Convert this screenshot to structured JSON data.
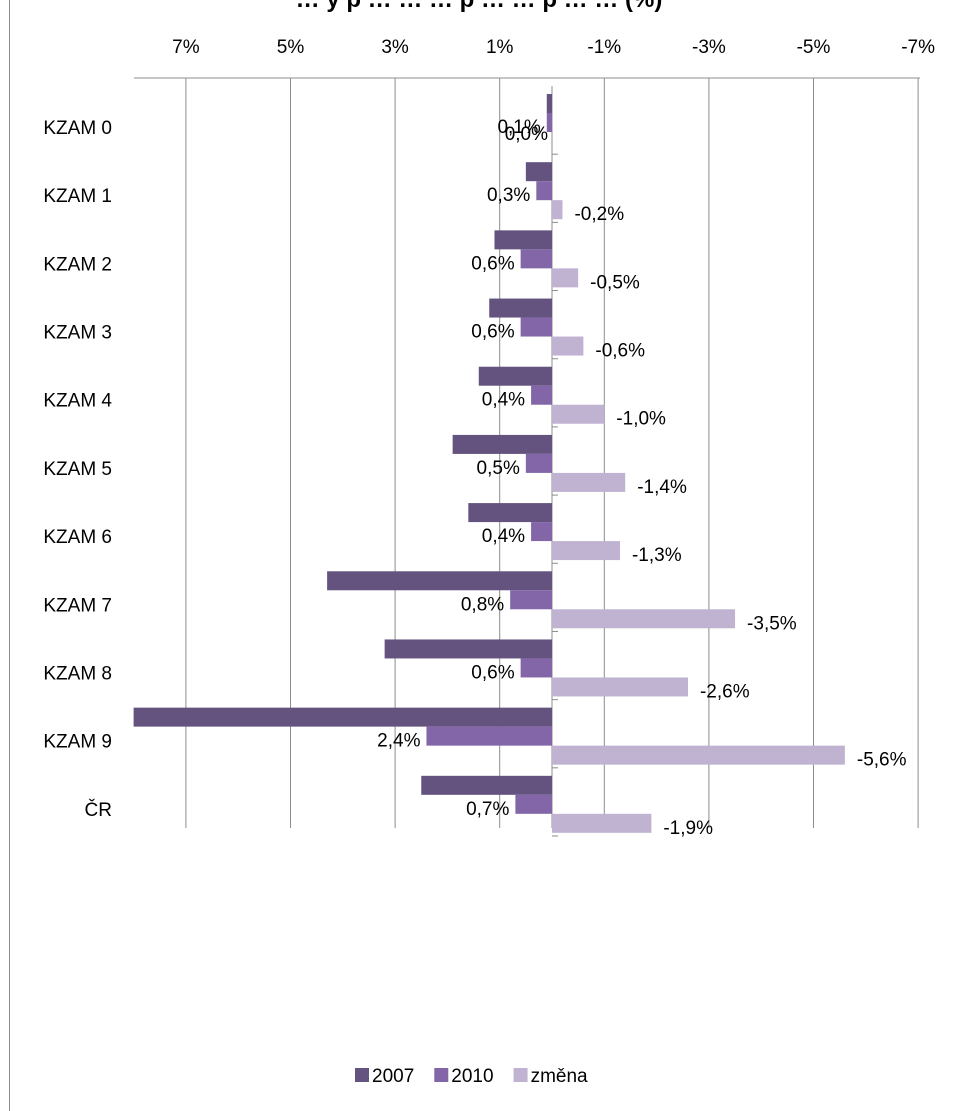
{
  "chart_data": {
    "type": "bar",
    "orientation": "horizontal",
    "title": "… y p … … … p … … p … … (%)",
    "categories": [
      "KZAM 0",
      "KZAM 1",
      "KZAM 2",
      "KZAM 3",
      "KZAM 4",
      "KZAM 5",
      "KZAM 6",
      "KZAM 7",
      "KZAM 8",
      "KZAM 9",
      "ČR"
    ],
    "x_axis": {
      "reversed": true,
      "position": "top",
      "ticks": [
        7,
        5,
        3,
        1,
        -1,
        -3,
        -5,
        -7
      ],
      "tick_labels": [
        "7%",
        "5%",
        "3%",
        "1%",
        "-1%",
        "-3%",
        "-5%",
        "-7%"
      ],
      "range": [
        8.0,
        -7.0
      ],
      "grid": true
    },
    "series": [
      {
        "name": "2007",
        "color": "#65537f",
        "values": [
          0.1,
          0.5,
          1.1,
          1.2,
          1.4,
          1.9,
          1.6,
          4.3,
          3.2,
          8.0,
          2.5
        ]
      },
      {
        "name": "2010",
        "color": "#8366a8",
        "values": [
          0.1,
          0.3,
          0.6,
          0.6,
          0.4,
          0.5,
          0.4,
          0.8,
          0.6,
          2.4,
          0.7
        ]
      },
      {
        "name": "změna",
        "color": "#bfb3d1",
        "values": [
          0.0,
          -0.2,
          -0.5,
          -0.6,
          -1.0,
          -1.4,
          -1.3,
          -3.5,
          -2.6,
          -5.6,
          -1.9
        ]
      }
    ],
    "data_labels": {
      "2010": [
        "0,1%",
        "0,3%",
        "0,6%",
        "0,6%",
        "0,4%",
        "0,5%",
        "0,4%",
        "0,8%",
        "0,6%",
        "2,4%",
        "0,7%"
      ],
      "změna": [
        "0,0%",
        "-0,2%",
        "-0,5%",
        "-0,6%",
        "-1,0%",
        "-1,4%",
        "-1,3%",
        "-3,5%",
        "-2,6%",
        "-5,6%",
        "-1,9%"
      ]
    },
    "legend": {
      "position": "bottom",
      "entries": [
        "2007",
        "2010",
        "změna"
      ]
    }
  }
}
